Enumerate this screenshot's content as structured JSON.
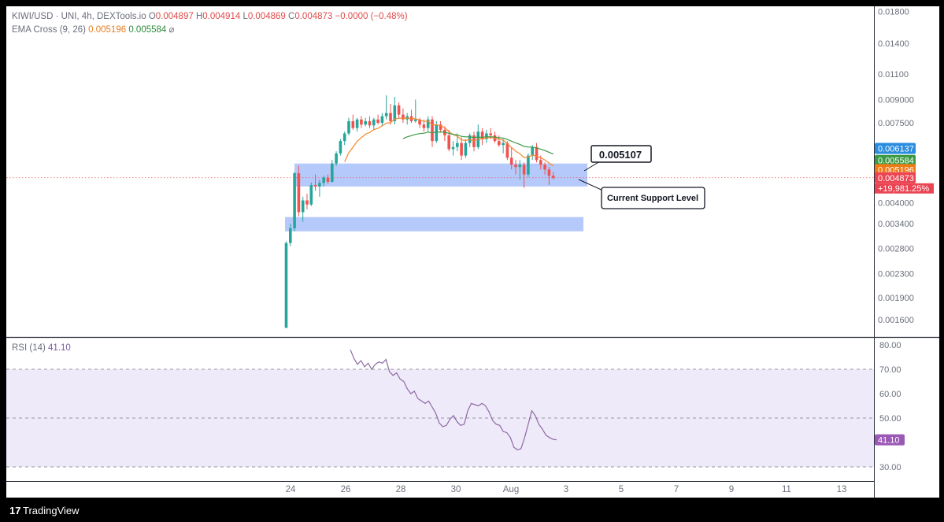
{
  "header": {
    "symbol": "KIWI/USD · UNI, 4h, DEXTools.io",
    "o_label": "O",
    "o_value": "0.004897",
    "h_label": "H",
    "h_value": "0.004914",
    "l_label": "L",
    "l_value": "0.004869",
    "c_label": "C",
    "c_value": "0.004873",
    "change": "−0.0000 (−0.48%)",
    "ema_title": "EMA Cross (9, 26)",
    "ema_fast": "0.005196",
    "ema_slow": "0.005584",
    "settings_glyph": "⌀"
  },
  "rsi_header": {
    "title": "RSI (14)",
    "value": "41.10"
  },
  "footer": {
    "logo_glyph": "17",
    "brand": "TradingView"
  },
  "annotations": {
    "price_callout": "0.005107",
    "support_label": "Current Support Level"
  },
  "colors": {
    "up": "#26a69a",
    "down": "#ef5350",
    "ema_fast": "#f5862a",
    "ema_slow": "#3d9a46",
    "zone": "#a9c0fa",
    "rsi_line": "#8d6aa3",
    "rsi_band": "#efeafa",
    "badge_blue": "#2a8de0",
    "badge_green": "#3b9a43",
    "badge_orange": "#f07a14",
    "badge_red": "#eb4452"
  },
  "chart_data": [
    {
      "type": "candlestick",
      "title": "KIWI/USD · UNI, 4h, DEXTools.io",
      "y_scale": "log",
      "y_ticks": [
        "0.01800",
        "0.01400",
        "0.01100",
        "0.009000",
        "0.007500",
        "0.004000",
        "0.003400",
        "0.002800",
        "0.002300",
        "0.001900",
        "0.001600"
      ],
      "y_tick_values": [
        0.018,
        0.014,
        0.011,
        0.009,
        0.0075,
        0.004,
        0.0034,
        0.0028,
        0.0023,
        0.0019,
        0.0016
      ],
      "x_ticks": [
        "24",
        "26",
        "28",
        "30",
        "Aug",
        "3",
        "5",
        "7",
        "9",
        "11",
        "13"
      ],
      "x_tick_days": [
        24,
        26,
        28,
        30,
        32,
        34,
        36,
        38,
        40,
        42,
        44
      ],
      "candles_ohlc": [
        [
          5e-05,
          0.00296,
          5e-05,
          0.00292
        ],
        [
          0.00292,
          0.0034,
          0.00285,
          0.00328
        ],
        [
          0.00328,
          0.0051,
          0.0032,
          0.00505
        ],
        [
          0.00505,
          0.00535,
          0.0036,
          0.00372
        ],
        [
          0.00372,
          0.0042,
          0.00345,
          0.00408
        ],
        [
          0.00408,
          0.0043,
          0.0038,
          0.00395
        ],
        [
          0.00395,
          0.0047,
          0.0039,
          0.0046
        ],
        [
          0.0046,
          0.005,
          0.0044,
          0.00455
        ],
        [
          0.00455,
          0.0048,
          0.0042,
          0.00468
        ],
        [
          0.00468,
          0.00495,
          0.00455,
          0.00488
        ],
        [
          0.00488,
          0.005,
          0.00465,
          0.00472
        ],
        [
          0.00472,
          0.0056,
          0.0047,
          0.00545
        ],
        [
          0.00545,
          0.006,
          0.00535,
          0.0059
        ],
        [
          0.0059,
          0.0066,
          0.0058,
          0.0065
        ],
        [
          0.0065,
          0.007,
          0.0063,
          0.0069
        ],
        [
          0.0069,
          0.0078,
          0.0068,
          0.0076
        ],
        [
          0.0076,
          0.008,
          0.0071,
          0.0072
        ],
        [
          0.0072,
          0.0078,
          0.007,
          0.0077
        ],
        [
          0.0077,
          0.0079,
          0.0072,
          0.0074
        ],
        [
          0.0074,
          0.0078,
          0.0073,
          0.0076
        ],
        [
          0.0076,
          0.0079,
          0.0072,
          0.00735
        ],
        [
          0.00735,
          0.0078,
          0.0071,
          0.0077
        ],
        [
          0.0077,
          0.008,
          0.0074,
          0.0075
        ],
        [
          0.0075,
          0.0081,
          0.0073,
          0.0079
        ],
        [
          0.0079,
          0.0093,
          0.0077,
          0.0081
        ],
        [
          0.0081,
          0.0087,
          0.0074,
          0.0076
        ],
        [
          0.0076,
          0.0092,
          0.0074,
          0.0086
        ],
        [
          0.0086,
          0.0088,
          0.0078,
          0.008
        ],
        [
          0.008,
          0.0084,
          0.0075,
          0.0077
        ],
        [
          0.0077,
          0.0081,
          0.0074,
          0.0079
        ],
        [
          0.0079,
          0.0083,
          0.0075,
          0.0076
        ],
        [
          0.0076,
          0.009,
          0.0075,
          0.0077
        ],
        [
          0.0077,
          0.0078,
          0.0072,
          0.0074
        ],
        [
          0.0074,
          0.0077,
          0.007,
          0.0072
        ],
        [
          0.0072,
          0.0079,
          0.007,
          0.0077
        ],
        [
          0.0077,
          0.0079,
          0.0062,
          0.0065
        ],
        [
          0.0065,
          0.0076,
          0.0064,
          0.0074
        ],
        [
          0.0074,
          0.0076,
          0.007,
          0.0071
        ],
        [
          0.0071,
          0.0073,
          0.0065,
          0.0068
        ],
        [
          0.0068,
          0.0071,
          0.006,
          0.0061
        ],
        [
          0.0061,
          0.0065,
          0.0058,
          0.0062
        ],
        [
          0.0062,
          0.0069,
          0.006,
          0.0064
        ],
        [
          0.0064,
          0.0067,
          0.0056,
          0.0058
        ],
        [
          0.0058,
          0.0066,
          0.0057,
          0.0064
        ],
        [
          0.0064,
          0.0069,
          0.0062,
          0.0068
        ],
        [
          0.0068,
          0.007,
          0.006,
          0.0062
        ],
        [
          0.0062,
          0.0074,
          0.0061,
          0.007
        ],
        [
          0.007,
          0.0072,
          0.0063,
          0.0066
        ],
        [
          0.0066,
          0.0071,
          0.0064,
          0.0069
        ],
        [
          0.0069,
          0.0072,
          0.0066,
          0.0068
        ],
        [
          0.0068,
          0.007,
          0.0064,
          0.0065
        ],
        [
          0.0065,
          0.0068,
          0.0062,
          0.0063
        ],
        [
          0.0063,
          0.0066,
          0.0059,
          0.0064
        ],
        [
          0.0064,
          0.0065,
          0.0056,
          0.0057
        ],
        [
          0.0057,
          0.0062,
          0.0052,
          0.0054
        ],
        [
          0.0054,
          0.0056,
          0.005,
          0.0053
        ],
        [
          0.0053,
          0.0056,
          0.0048,
          0.0054
        ],
        [
          0.0054,
          0.0055,
          0.0045,
          0.005
        ],
        [
          0.005,
          0.0059,
          0.0049,
          0.0058
        ],
        [
          0.0058,
          0.0063,
          0.0056,
          0.0062
        ],
        [
          0.0062,
          0.0064,
          0.0055,
          0.0056
        ],
        [
          0.0056,
          0.0058,
          0.0052,
          0.0054
        ],
        [
          0.0054,
          0.0055,
          0.005,
          0.0052
        ],
        [
          0.0052,
          0.0053,
          0.0046,
          0.00495
        ],
        [
          0.00495,
          0.0051,
          0.0048,
          0.00487
        ]
      ],
      "ema_fast_name": "EMA Cross (9, 26)",
      "current_price": 0.004873,
      "annotation_price": 0.005107,
      "support_zones": [
        {
          "low": 0.00455,
          "high": 0.00545,
          "label": "Current Support Level"
        },
        {
          "low": 0.0032,
          "high": 0.00358
        }
      ],
      "price_badges": [
        {
          "text": "0.006137",
          "value": 0.006137,
          "color": "#2a8de0"
        },
        {
          "text": "0.005584",
          "value": 0.005584,
          "color": "#3b9a43"
        },
        {
          "text": "0.005196",
          "value": 0.005196,
          "color": "#f07a14"
        },
        {
          "text": "0.004873",
          "value": 0.004873,
          "color": "#eb4452"
        }
      ],
      "pct_change_label": "+19,981.25%"
    },
    {
      "type": "line",
      "title": "RSI (14)",
      "y_ticks": [
        "80.00",
        "70.00",
        "60.00",
        "50.00",
        "30.00"
      ],
      "y_tick_values": [
        80,
        70,
        60,
        50,
        30
      ],
      "ylim": [
        28,
        81
      ],
      "bands": [
        30,
        70
      ],
      "midline": 50,
      "values": [
        78.0,
        74.5,
        72.0,
        73.5,
        71.0,
        72.5,
        70.0,
        72.0,
        73.0,
        72.5,
        74.0,
        69.0,
        67.5,
        68.5,
        66.0,
        65.0,
        62.0,
        60.0,
        61.0,
        58.0,
        57.0,
        56.0,
        57.0,
        54.5,
        52.0,
        48.0,
        46.5,
        47.0,
        49.5,
        51.0,
        48.5,
        47.0,
        47.5,
        53.0,
        56.0,
        55.5,
        55.0,
        56.0,
        55.0,
        52.5,
        49.0,
        47.5,
        47.0,
        44.5,
        44.0,
        42.0,
        38.0,
        37.0,
        37.5,
        42.0,
        47.5,
        53.0,
        51.0,
        47.5,
        45.5,
        43.0,
        42.0,
        41.3,
        41.1
      ],
      "last_value": "41.10"
    }
  ]
}
